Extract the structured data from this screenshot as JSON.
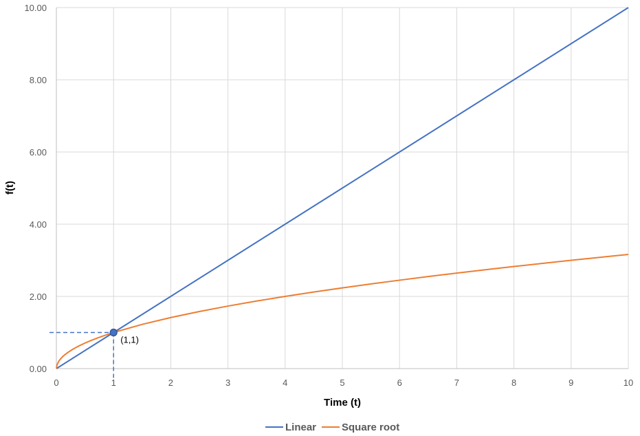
{
  "chart_data": {
    "type": "line",
    "xlabel": "Time (t)",
    "ylabel": "f(t)",
    "xlim": [
      0,
      10
    ],
    "ylim": [
      0,
      10
    ],
    "x_ticks": [
      0,
      1,
      2,
      3,
      4,
      5,
      6,
      7,
      8,
      9,
      10
    ],
    "x_tick_labels": [
      "0",
      "1",
      "2",
      "3",
      "4",
      "5",
      "6",
      "7",
      "8",
      "9",
      "10"
    ],
    "y_ticks": [
      0,
      2,
      4,
      6,
      8,
      10
    ],
    "y_tick_labels": [
      "0.00",
      "2.00",
      "4.00",
      "6.00",
      "8.00",
      "10.00"
    ],
    "grid": true,
    "legend_position": "bottom",
    "series": [
      {
        "name": "Linear",
        "color": "#4472C4",
        "x": [
          0,
          1,
          2,
          3,
          4,
          5,
          6,
          7,
          8,
          9,
          10
        ],
        "y": [
          0,
          1,
          2,
          3,
          4,
          5,
          6,
          7,
          8,
          9,
          10
        ]
      },
      {
        "name": "Square root",
        "color": "#ED7D31",
        "x": [
          0,
          0.01,
          0.05,
          0.1,
          0.15,
          0.2,
          0.3,
          0.4,
          0.5,
          0.6,
          0.7,
          0.8,
          0.9,
          1,
          1.5,
          2,
          2.5,
          3,
          3.5,
          4,
          4.5,
          5,
          5.5,
          6,
          6.5,
          7,
          7.5,
          8,
          8.5,
          9,
          9.5,
          10
        ],
        "y": [
          0,
          0.1,
          0.224,
          0.316,
          0.387,
          0.447,
          0.548,
          0.632,
          0.707,
          0.775,
          0.837,
          0.894,
          0.949,
          1,
          1.225,
          1.414,
          1.581,
          1.732,
          1.871,
          2,
          2.121,
          2.236,
          2.345,
          2.449,
          2.55,
          2.646,
          2.739,
          2.828,
          2.915,
          3,
          3.082,
          3.162
        ]
      }
    ],
    "annotations": [
      {
        "text": "(1,1)",
        "x": 1,
        "y": 1,
        "marker": true,
        "reference_lines": true,
        "color": "#4472C4"
      }
    ]
  }
}
